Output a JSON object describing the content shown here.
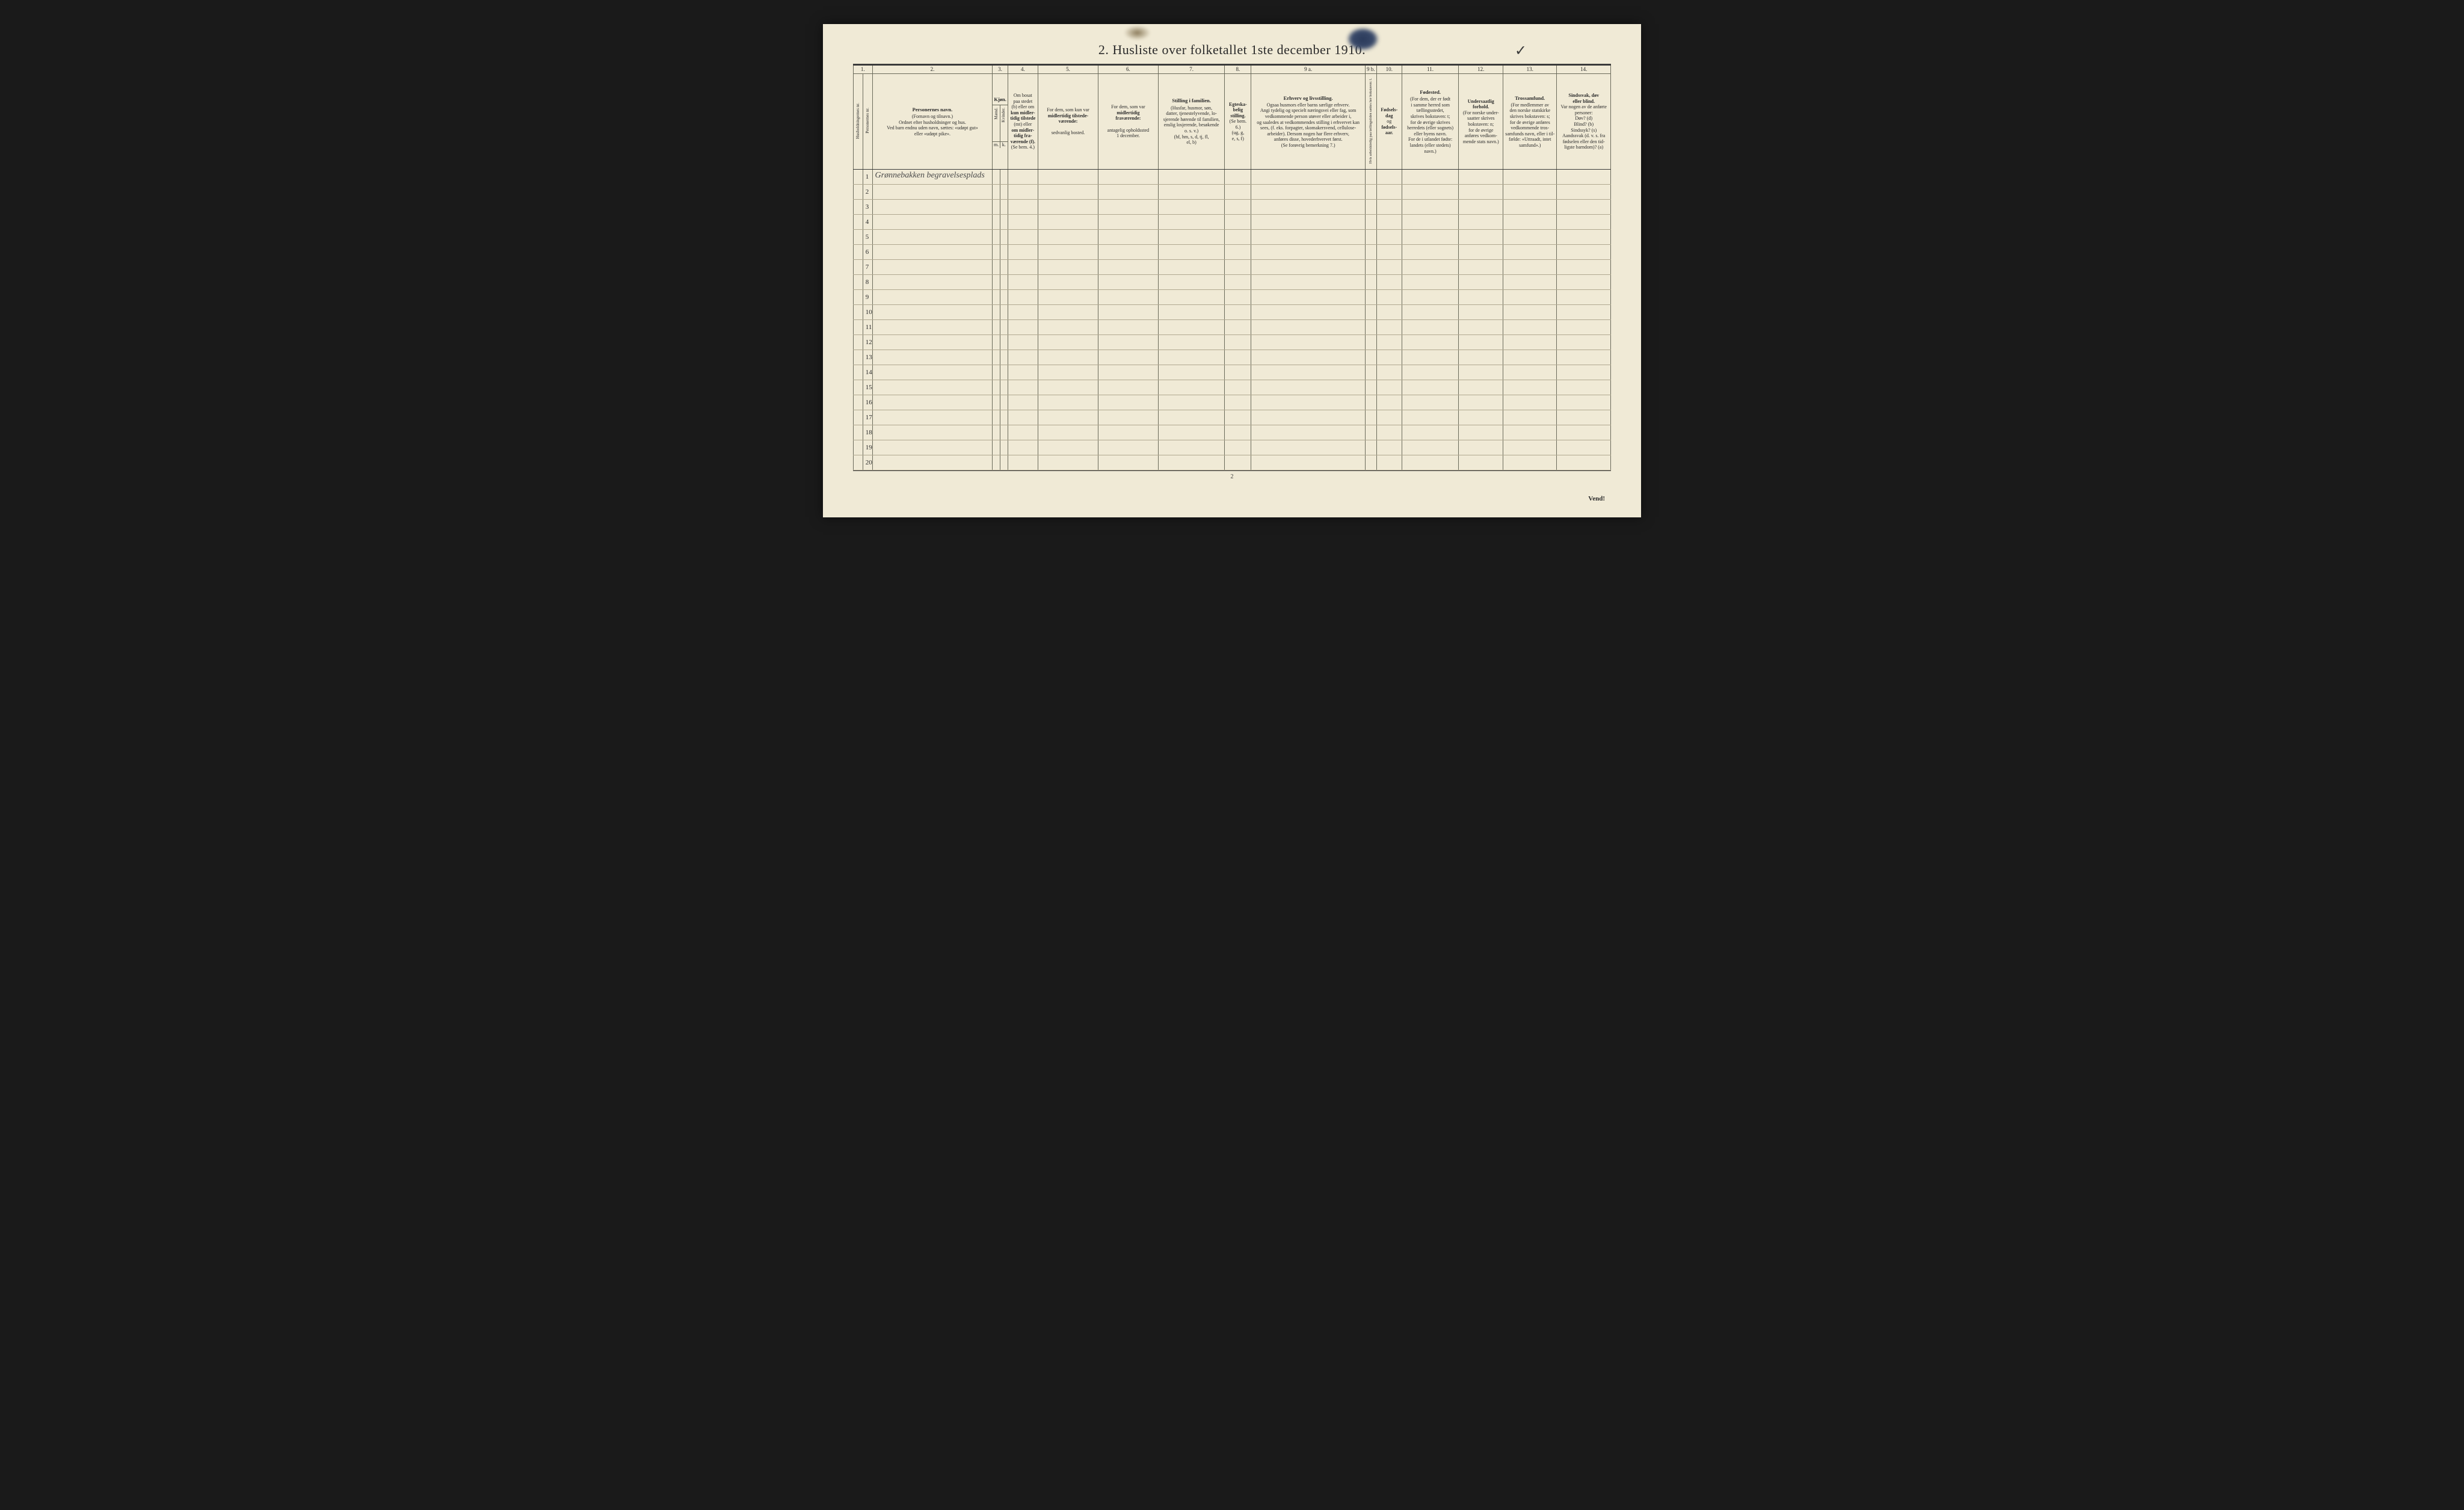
{
  "title": "2.   Husliste over folketallet 1ste december 1910.",
  "checkmark": "✓",
  "page_number": "2",
  "vend_text": "Vend!",
  "column_numbers": [
    "1.",
    "2.",
    "3.",
    "4.",
    "5.",
    "6.",
    "7.",
    "8.",
    "9 a.",
    "9 b.",
    "10.",
    "11.",
    "12.",
    "13.",
    "14."
  ],
  "headers": {
    "col1_v1": "Husholdningernes nr.",
    "col1_v2": "Personernes nr.",
    "col2_bold": "Personernes navn.",
    "col2_line1": "(Fornavn og tilnavn.)",
    "col2_line2": "Ordnet efter husholdninger og hus.",
    "col2_line3": "Ved barn endnu uden navn, sættes: «udøpt gut»",
    "col2_line4": "eller «udøpt pike».",
    "col3_bold": "Kjøn.",
    "col3_v1": "Mænd.",
    "col3_v2": "Kvinder.",
    "col3_m": "m.",
    "col3_k": "k.",
    "col4_line1": "Om bosat",
    "col4_line2": "paa stedet",
    "col4_line3": "(b) eller om",
    "col4_line4": "kun midler-",
    "col4_line5": "tidig tilstede",
    "col4_line6": "(mt) eller",
    "col4_line7": "om midler-",
    "col4_line8": "tidig fra-",
    "col4_line9": "værende (f).",
    "col4_line10": "(Se bem. 4.)",
    "col5_line1": "For dem, som kun var",
    "col5_bold": "midlertidig tilstede-",
    "col5_bold2": "værende:",
    "col5_line2": "sedvanlig bosted.",
    "col6_line1": "For dem, som var",
    "col6_bold": "midlertidig",
    "col6_bold2": "fraværende:",
    "col6_line2": "antagelig opholdssted",
    "col6_line3": "1 december.",
    "col7_bold": "Stilling i familien.",
    "col7_line1": "(Husfar, husmor, søn,",
    "col7_line2": "datter, tjenestelyvende, lo-",
    "col7_line3": "sjerende hørende til familien,",
    "col7_line4": "enslig losjerende, besøkende",
    "col7_line5": "o. s. v.)",
    "col7_line6": "(hf, hm, s, d, tj, fl,",
    "col7_line7": "el, b)",
    "col8_bold": "Egteska-",
    "col8_bold2": "belig",
    "col8_bold3": "stilling.",
    "col8_line1": "(Se bem. 6.)",
    "col8_line2": "(ug, g,",
    "col8_line3": "e, s, f)",
    "col9a_bold": "Erhverv og livsstilling.",
    "col9a_line1": "Ogsaa husmors eller barns særlige erhverv.",
    "col9a_line2": "Angi tydelig og specielt næringsvei eller fag, som",
    "col9a_line3": "vedkommende person utøver eller arbeider i,",
    "col9a_line4": "og saaledes at vedkommendes stilling i erhvervet kan",
    "col9a_line5": "sees, (f. eks. forpagter, skomakersvend, cellulose-",
    "col9a_line6": "arbeider). Dersom nogen har flere erhverv,",
    "col9a_line7": "anføres disse, hovederhvervet først.",
    "col9a_line8": "(Se forøvrig bemerkning 7.)",
    "col9b_v": "Hvis arbeidsledig paa tællingstiden sættes her bokstaven: l.",
    "col10_bold": "Fødsels-",
    "col10_bold2": "dag",
    "col10_line1": "og",
    "col10_bold3": "fødsels-",
    "col10_bold4": "aar.",
    "col11_bold": "Fødested.",
    "col11_line1": "(For dem, der er født",
    "col11_line2": "i samme herred som",
    "col11_line3": "tællingsstedet,",
    "col11_line4": "skrives bokstaven: t;",
    "col11_line5": "for de øvrige skrives",
    "col11_line6": "herredets (eller sognets)",
    "col11_line7": "eller byens navn.",
    "col11_line8": "For de i utlandet fødte:",
    "col11_line9": "landets (eller stedets)",
    "col11_line10": "navn.)",
    "col12_bold": "Undersaatlig",
    "col12_bold2": "forhold.",
    "col12_line1": "(For norske under-",
    "col12_line2": "saatter skrives",
    "col12_line3": "bokstaven: n;",
    "col12_line4": "for de øvrige",
    "col12_line5": "anføres vedkom-",
    "col12_line6": "mende stats navn.)",
    "col13_bold": "Trossamfund.",
    "col13_line1": "(For medlemmer av",
    "col13_line2": "den norske statskirke",
    "col13_line3": "skrives bokstaven: s;",
    "col13_line4": "for de øvrige anføres",
    "col13_line5": "vedkommende tros-",
    "col13_line6": "samfunds navn, eller i til-",
    "col13_line7": "fælde: «Uttraadt, intet",
    "col13_line8": "samfund».)",
    "col14_bold": "Sindssvak, døv",
    "col14_bold2": "eller blind.",
    "col14_line1": "Var nogen av de anførte",
    "col14_line2": "personer:",
    "col14_line3": "Døv?        (d)",
    "col14_line4": "Blind?      (b)",
    "col14_line5": "Sindssyk?  (s)",
    "col14_line6": "Aandssvak (d. v. s. fra",
    "col14_line7": "fødselen eller den tid-",
    "col14_line8": "ligste barndom)?  (a)"
  },
  "handwritten_entry": "Grønnebakken begravelsesplads",
  "row_numbers": [
    "1",
    "2",
    "3",
    "4",
    "5",
    "6",
    "7",
    "8",
    "9",
    "10",
    "11",
    "12",
    "13",
    "14",
    "15",
    "16",
    "17",
    "18",
    "19",
    "20"
  ]
}
